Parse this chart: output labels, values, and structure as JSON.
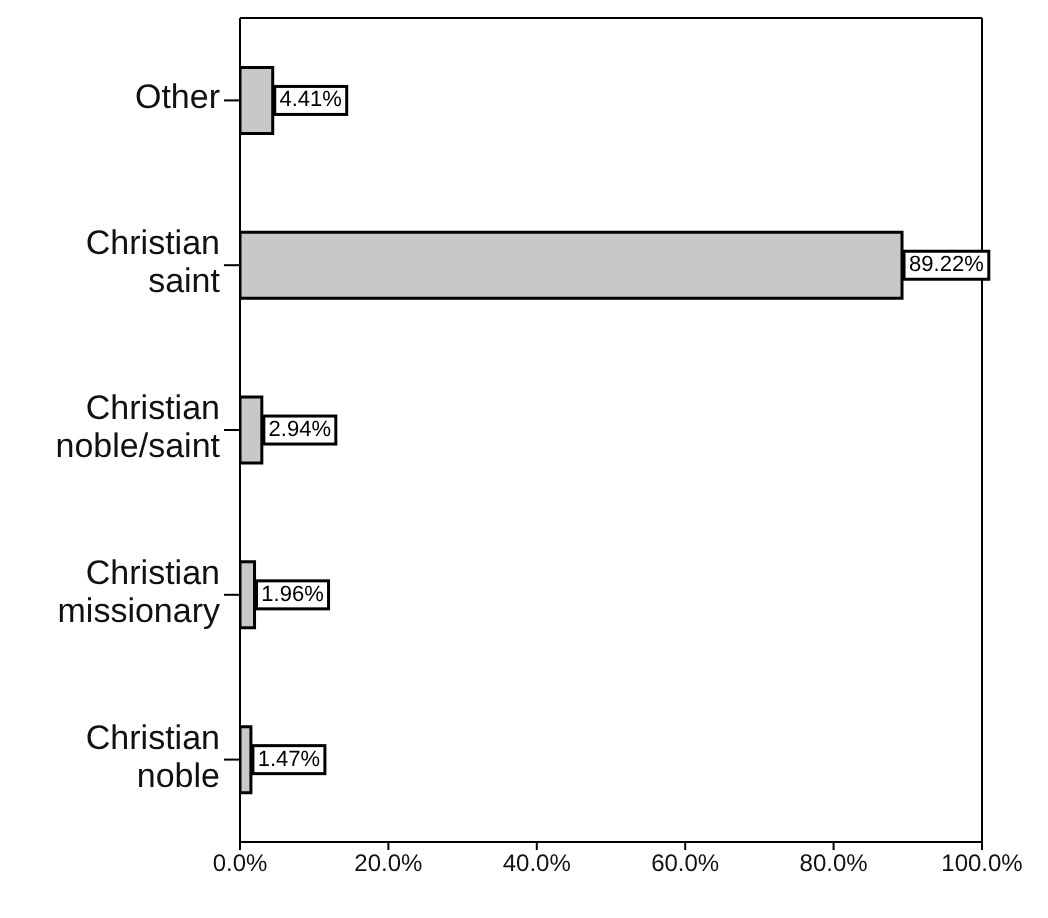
{
  "chart_data": {
    "type": "bar",
    "orientation": "horizontal",
    "categories": [
      "Other",
      "Christian saint",
      "Christian noble/saint",
      "Christian missionary",
      "Christian noble"
    ],
    "values": [
      4.41,
      89.22,
      2.94,
      1.96,
      1.47
    ],
    "value_labels": [
      "4.41%",
      "89.22%",
      "2.94%",
      "1.96%",
      "1.47%"
    ],
    "color": "#c8c8c8",
    "xlim": [
      0,
      100
    ],
    "xticks": [
      {
        "value": 0,
        "label": "0.0%"
      },
      {
        "value": 20,
        "label": "20.0%"
      },
      {
        "value": 40,
        "label": "40.0%"
      },
      {
        "value": 60,
        "label": "60.0%"
      },
      {
        "value": 80,
        "label": "80.0%"
      },
      {
        "value": 100,
        "label": "100.0%"
      }
    ],
    "grid": false,
    "legend": false
  }
}
